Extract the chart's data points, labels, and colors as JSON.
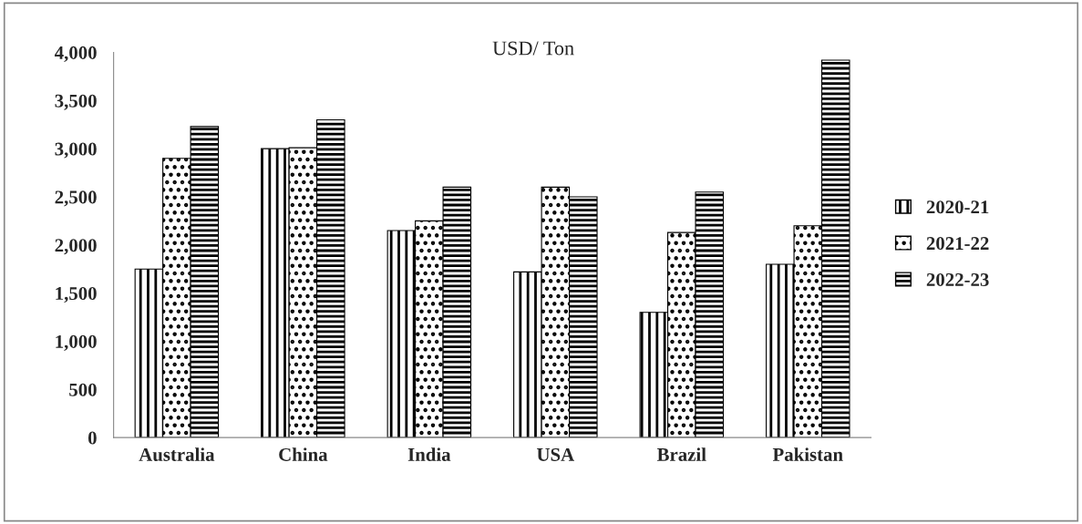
{
  "chart_data": {
    "type": "bar",
    "title": "USD/ Ton",
    "categories": [
      "Australia",
      "China",
      "India",
      "USA",
      "Brazil",
      "Pakistan"
    ],
    "series": [
      {
        "name": "2020-21",
        "color": "#000000",
        "values": [
          1750,
          3000,
          2150,
          1720,
          1300,
          1800
        ]
      },
      {
        "name": "2021-22",
        "color": "#000000",
        "values": [
          2900,
          3010,
          2250,
          2600,
          2130,
          2200
        ]
      },
      {
        "name": "2022-23",
        "color": "#000000",
        "values": [
          3230,
          3300,
          2600,
          2500,
          2550,
          3920
        ]
      }
    ],
    "ylim": [
      0,
      4000
    ],
    "yticks": [
      {
        "value": 0,
        "label": "0"
      },
      {
        "value": 500,
        "label": "500"
      },
      {
        "value": 1000,
        "label": "1,000"
      },
      {
        "value": 1500,
        "label": "1,500"
      },
      {
        "value": 2000,
        "label": "2,000"
      },
      {
        "value": 2500,
        "label": "2,500"
      },
      {
        "value": 3000,
        "label": "3,000"
      },
      {
        "value": 3500,
        "label": "3,500"
      },
      {
        "value": 4000,
        "label": "4,000"
      }
    ],
    "legend": "right",
    "grid": false
  }
}
